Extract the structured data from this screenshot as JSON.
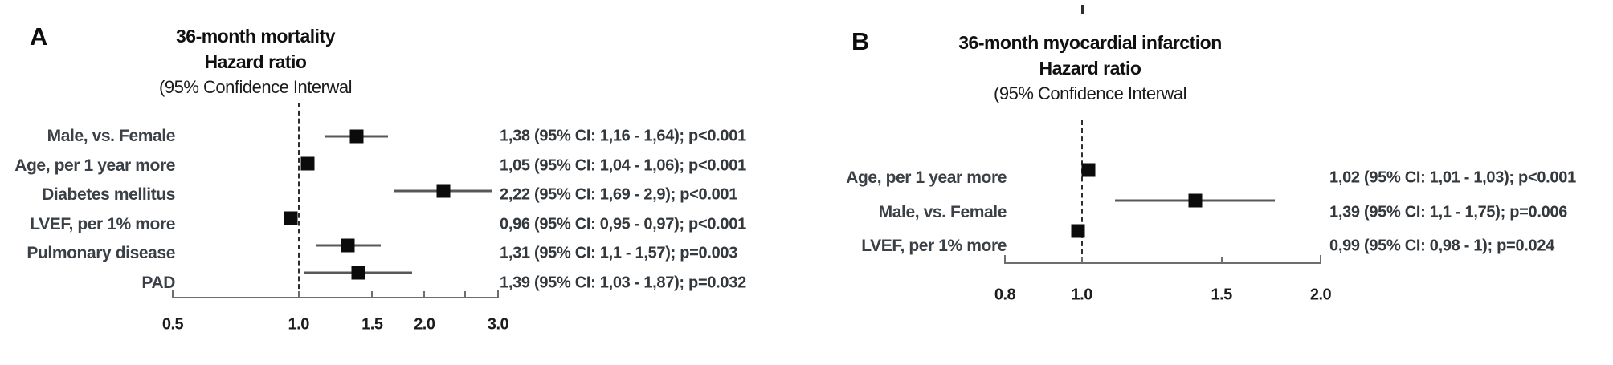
{
  "figure": {
    "background": "#ffffff",
    "colors": {
      "marker": "#0b0b0b",
      "ci_line": "#585858",
      "axis": "#6e6e6e",
      "dashed_reference": "#2d2d2d",
      "label_text": "#3a4046",
      "title_text": "#101010"
    }
  },
  "chart_data": [
    {
      "type": "forest",
      "panel_label": "A",
      "title_lines": [
        "36-month mortality",
        "Hazard ratio",
        "(95% Confidence Interwal"
      ],
      "scale": "log",
      "xlim": [
        0.5,
        3.0
      ],
      "reference_line": 1.0,
      "axis_ticks": [
        {
          "value": 0.5,
          "label": "0.5"
        },
        {
          "value": 1.0,
          "label": "1.0"
        },
        {
          "value": 1.5,
          "label": "1.5"
        },
        {
          "value": 2.0,
          "label": "2.0"
        },
        {
          "value": 2.5,
          "label": ""
        },
        {
          "value": 3.0,
          "label": "3.0"
        }
      ],
      "rows": [
        {
          "label": "Male, vs. Female",
          "hr": 1.38,
          "ci_low": 1.16,
          "ci_high": 1.64,
          "annotation": "1,38 (95% CI: 1,16 - 1,64); p<0.001"
        },
        {
          "label": "Age, per 1 year more",
          "hr": 1.05,
          "ci_low": 1.04,
          "ci_high": 1.06,
          "annotation": "1,05 (95% CI: 1,04 - 1,06); p<0.001"
        },
        {
          "label": "Diabetes mellitus",
          "hr": 2.22,
          "ci_low": 1.69,
          "ci_high": 2.9,
          "annotation": "2,22 (95% CI: 1,69 - 2,9); p<0.001"
        },
        {
          "label": "LVEF, per 1% more",
          "hr": 0.96,
          "ci_low": 0.95,
          "ci_high": 0.97,
          "annotation": "0,96 (95% CI: 0,95 - 0,97); p<0.001"
        },
        {
          "label": "Pulmonary disease",
          "hr": 1.31,
          "ci_low": 1.1,
          "ci_high": 1.57,
          "annotation": "1,31 (95% CI: 1,1 - 1,57); p=0.003"
        },
        {
          "label": "PAD",
          "hr": 1.39,
          "ci_low": 1.03,
          "ci_high": 1.87,
          "annotation": "1,39 (95% CI: 1,03 - 1,87); p=0.032"
        }
      ]
    },
    {
      "type": "forest",
      "panel_label": "B",
      "title_lines": [
        "36-month myocardial infarction",
        "Hazard ratio",
        "(95% Confidence Interwal"
      ],
      "scale": "log",
      "xlim": [
        0.8,
        2.0
      ],
      "reference_line": 1.0,
      "axis_ticks": [
        {
          "value": 0.8,
          "label": "0.8"
        },
        {
          "value": 1.0,
          "label": "1.0"
        },
        {
          "value": 1.5,
          "label": "1.5"
        },
        {
          "value": 2.0,
          "label": "2.0"
        }
      ],
      "rows": [
        {
          "label": "Age, per 1 year more",
          "hr": 1.02,
          "ci_low": 1.01,
          "ci_high": 1.03,
          "annotation": "1,02 (95% CI: 1,01 - 1,03); p<0.001"
        },
        {
          "label": "Male, vs. Female",
          "hr": 1.39,
          "ci_low": 1.1,
          "ci_high": 1.75,
          "annotation": "1,39 (95% CI: 1,1 - 1,75); p=0.006"
        },
        {
          "label": "LVEF, per 1% more",
          "hr": 0.99,
          "ci_low": 0.98,
          "ci_high": 1.0,
          "annotation": "0,99 (95% CI: 0,98 - 1); p=0.024"
        }
      ]
    }
  ]
}
